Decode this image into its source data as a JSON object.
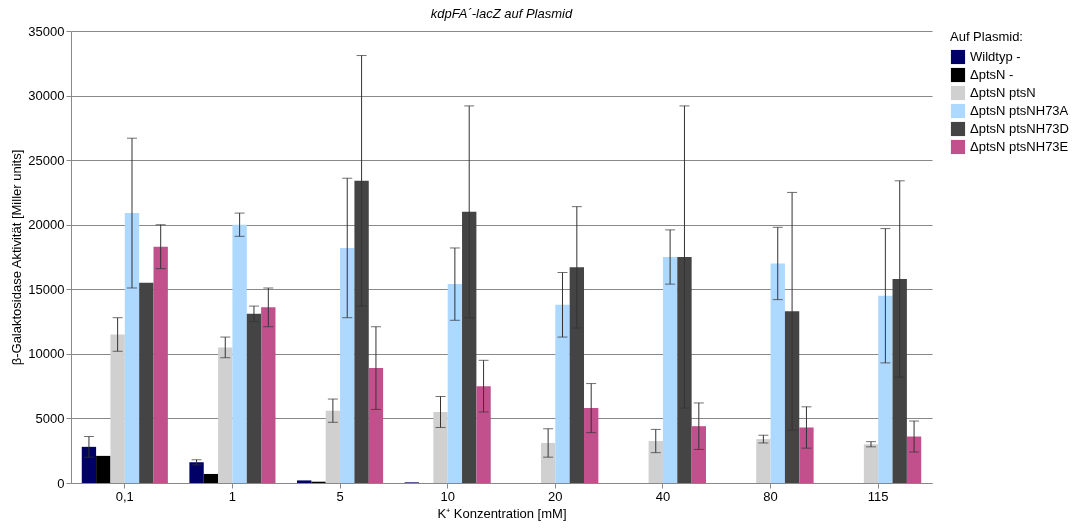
{
  "chart_data": {
    "type": "bar",
    "title": "kdpFA´-lacZ auf Plasmid",
    "xlabel": "K⁺ Konzentration  [mM]",
    "ylabel": "β-Galaktosidase Aktivität [Miller units]",
    "legend_title": "Auf Plasmid:",
    "categories": [
      "0,1",
      "1",
      "5",
      "10",
      "20",
      "40",
      "80",
      "115"
    ],
    "series": [
      {
        "name": "Wildtyp   -",
        "color": "#000066",
        "values": [
          2800,
          1600,
          200,
          50,
          0,
          0,
          0,
          0
        ],
        "errors": [
          800,
          200,
          null,
          null,
          null,
          null,
          null,
          null
        ]
      },
      {
        "name": "ΔptsN   -",
        "color": "#000000",
        "values": [
          2100,
          700,
          100,
          0,
          0,
          0,
          0,
          0
        ]
      },
      {
        "name": "ΔptsN   ptsN",
        "color": "#d0d0d0",
        "values": [
          11500,
          10500,
          5600,
          5500,
          3100,
          3250,
          3400,
          3000
        ],
        "errors": [
          1300,
          800,
          900,
          1200,
          1100,
          900,
          300,
          200
        ]
      },
      {
        "name": "ΔptsN   ptsNH73A",
        "color": "#add8ff",
        "values": [
          20900,
          20000,
          18200,
          15400,
          13800,
          17500,
          17000,
          14500
        ],
        "errors": [
          5800,
          900,
          5400,
          2800,
          2500,
          2100,
          2800,
          5200
        ]
      },
      {
        "name": "ΔptsN   ptsNH73D",
        "color": "#444444",
        "values": [
          15500,
          13100,
          23400,
          21000,
          16700,
          17500,
          13300,
          15800
        ],
        "errors": [
          null,
          600,
          9700,
          8200,
          4700,
          11700,
          9200,
          7600
        ]
      },
      {
        "name": "ΔptsN   ptsNH73E",
        "color": "#c2508c",
        "values": [
          18300,
          13600,
          8900,
          7500,
          5800,
          4400,
          4300,
          3600
        ],
        "errors": [
          1700,
          1500,
          3200,
          2000,
          1900,
          1800,
          1600,
          1200
        ]
      }
    ],
    "ylim": [
      0,
      35000
    ],
    "yticks": [
      0,
      5000,
      10000,
      15000,
      20000,
      25000,
      30000,
      35000
    ],
    "grid": "y",
    "legend": "right"
  }
}
